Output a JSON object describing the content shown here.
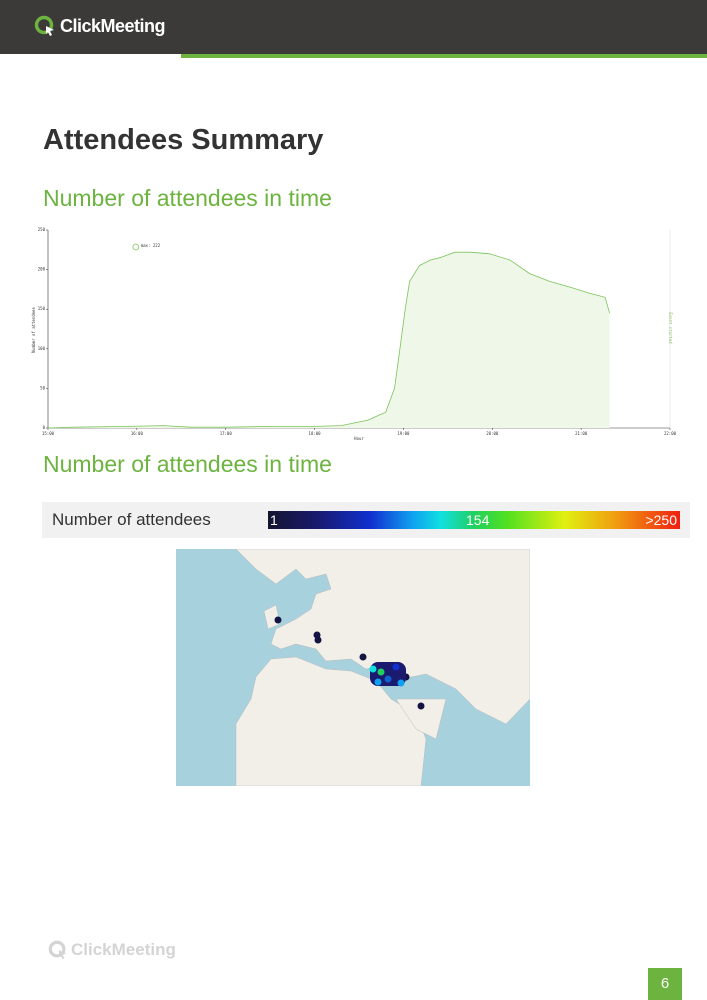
{
  "header": {
    "logo": "ClickMeeting"
  },
  "title": "Attendees Summary",
  "section_1": {
    "heading": "Number of attendees in time"
  },
  "chart_data": {
    "type": "area",
    "y_label": "Number of attendees",
    "x_label": "Hour",
    "annotation": "Event started",
    "xlim": [
      15,
      22
    ],
    "ylim": [
      0,
      250
    ],
    "xticks": [
      {
        "value": 15,
        "label": "15:00"
      },
      {
        "value": 16,
        "label": "16:00"
      },
      {
        "value": 17,
        "label": "17:00"
      },
      {
        "value": 18,
        "label": "18:00"
      },
      {
        "value": 19,
        "label": "19:00"
      },
      {
        "value": 20,
        "label": "20:00"
      },
      {
        "value": 21,
        "label": "21:00"
      },
      {
        "value": 22,
        "label": "22:00"
      }
    ],
    "yticks": [
      0,
      50,
      100,
      150,
      200,
      250
    ],
    "series": [
      {
        "name": "max: 222",
        "color": "#7cc35a",
        "fill": "#eef7e8",
        "x": [
          15.0,
          15.3,
          15.9,
          16.3,
          16.6,
          17.0,
          17.5,
          18.0,
          18.3,
          18.6,
          18.8,
          18.9,
          18.96,
          19.02,
          19.07,
          19.18,
          19.3,
          19.41,
          19.58,
          19.75,
          19.97,
          20.2,
          20.42,
          20.65,
          20.87,
          21.1,
          21.27,
          21.32
        ],
        "values": [
          0,
          1,
          2,
          3,
          1,
          1,
          2,
          2,
          3,
          10,
          20,
          50,
          100,
          150,
          185,
          205,
          212,
          215,
          222,
          222,
          220,
          212,
          195,
          185,
          178,
          170,
          165,
          145
        ]
      }
    ]
  },
  "section_2": {
    "heading": "Number of attendees in time"
  },
  "legend_bar": {
    "title": "Number of attendees",
    "min": "1",
    "mid": "154",
    "max": ">250"
  },
  "footer": {
    "logo": "ClickMeeting",
    "page": "6"
  }
}
